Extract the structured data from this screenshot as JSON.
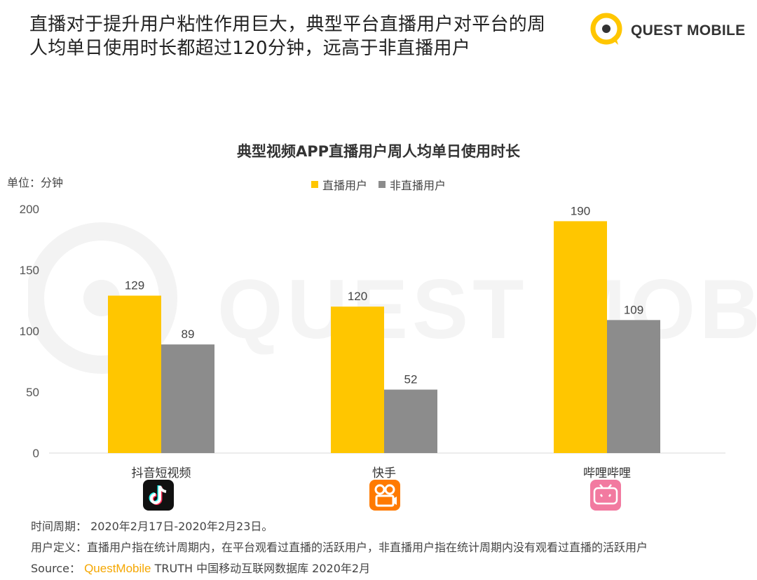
{
  "headline": {
    "line1": "直播对于提升用户粘性作用巨大，典型平台直播用户对平台的周",
    "line2": "人均单日使用时长都超过120分钟，远高于非直播用户"
  },
  "brand": {
    "name": "QUEST MOBILE",
    "watermark": "QUEST MOBILE"
  },
  "chart_data": {
    "type": "bar",
    "title": "典型视频APP直播用户周人均单日使用时长",
    "unit_label": "单位：分钟",
    "categories": [
      "抖音短视频",
      "快手",
      "哔哩哔哩"
    ],
    "series": [
      {
        "name": "直播用户",
        "color": "#ffc600",
        "values": [
          129,
          120,
          190
        ]
      },
      {
        "name": "非直播用户",
        "color": "#8c8c8c",
        "values": [
          89,
          52,
          109
        ]
      }
    ],
    "ylim": [
      0,
      200
    ],
    "yticks": [
      0,
      50,
      100,
      150,
      200
    ],
    "grid": false,
    "legend_position": "top-center",
    "xlabel": "",
    "ylabel": ""
  },
  "app_icons": [
    "douyin-logo",
    "kuaishou-logo",
    "bilibili-logo"
  ],
  "notes": {
    "period": "时间周期： 2020年2月17日-2020年2月23日。",
    "definition": "用户定义：直播用户指在统计周期内，在平台观看过直播的活跃用户，非直播用户指在统计周期内没有观看过直播的活跃用户",
    "source_prefix": "Source：",
    "source_brand": "QuestMobile",
    "source_rest": " TRUTH 中国移动互联网数据库 2020年2月"
  }
}
